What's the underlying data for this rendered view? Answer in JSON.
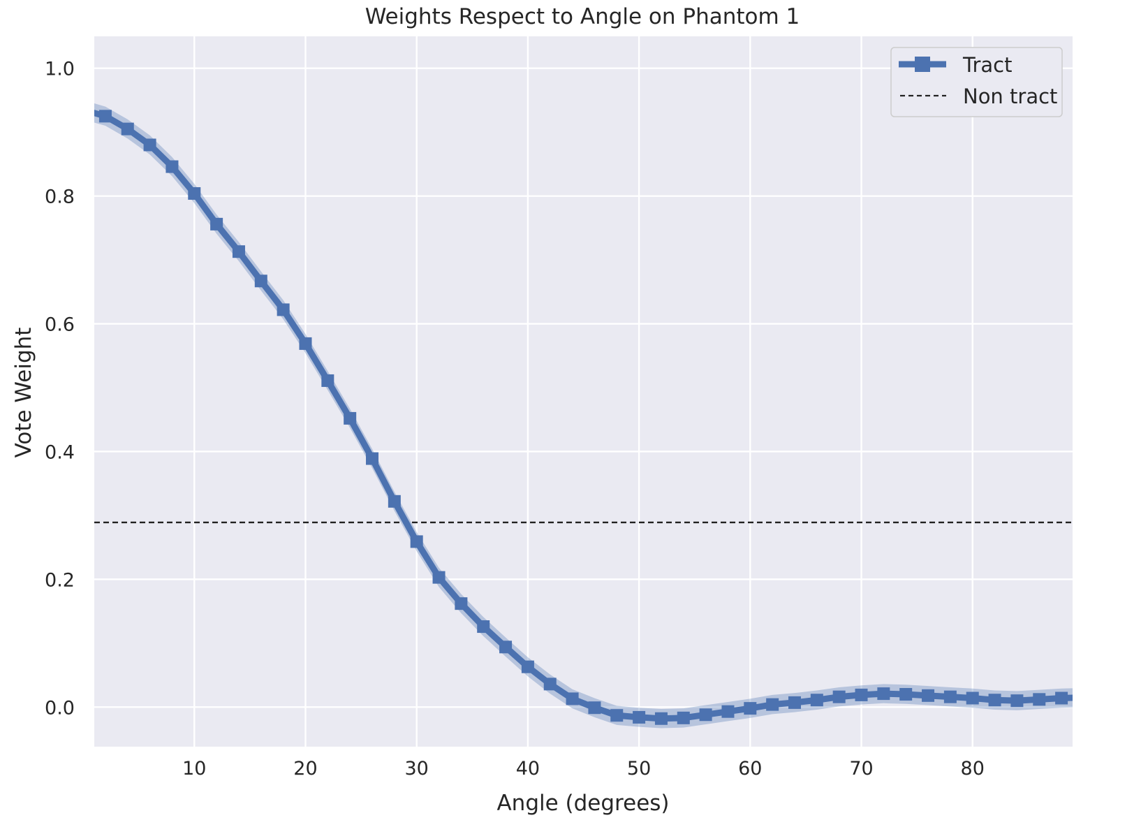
{
  "chart_data": {
    "type": "line",
    "title": "Weights Respect to Angle on Phantom 1",
    "xlabel": "Angle (degrees)",
    "ylabel": "Vote Weight",
    "xlim": [
      1,
      89
    ],
    "ylim": [
      -0.062,
      1.05
    ],
    "xticks": [
      10,
      20,
      30,
      40,
      50,
      60,
      70,
      80
    ],
    "yticks": [
      0.0,
      0.2,
      0.4,
      0.6,
      0.8,
      1.0
    ],
    "xtick_labels": [
      "10",
      "20",
      "30",
      "40",
      "50",
      "60",
      "70",
      "80"
    ],
    "ytick_labels": [
      "0.0",
      "0.2",
      "0.4",
      "0.6",
      "0.8",
      "1.0"
    ],
    "grid": true,
    "legend_position": "top-right",
    "colors": {
      "background": "#eaeaf2",
      "grid": "#ffffff",
      "tract": "#4c72b0",
      "non_tract": "#222222"
    },
    "series": [
      {
        "name": "Tract",
        "style": "solid-square-markers",
        "band": 0.015,
        "x": [
          0,
          2,
          4,
          6,
          8,
          10,
          12,
          14,
          16,
          18,
          20,
          22,
          24,
          26,
          28,
          30,
          32,
          34,
          36,
          38,
          40,
          42,
          44,
          46,
          48,
          50,
          52,
          54,
          56,
          58,
          60,
          62,
          64,
          66,
          68,
          70,
          72,
          74,
          76,
          78,
          80,
          82,
          84,
          86,
          88,
          90
        ],
        "y": [
          0.935,
          0.925,
          0.905,
          0.88,
          0.846,
          0.804,
          0.756,
          0.713,
          0.667,
          0.622,
          0.569,
          0.511,
          0.452,
          0.389,
          0.322,
          0.259,
          0.203,
          0.162,
          0.126,
          0.094,
          0.063,
          0.036,
          0.013,
          -0.001,
          -0.013,
          -0.016,
          -0.018,
          -0.017,
          -0.012,
          -0.007,
          -0.002,
          0.004,
          0.007,
          0.011,
          0.016,
          0.019,
          0.021,
          0.02,
          0.018,
          0.016,
          0.014,
          0.011,
          0.01,
          0.012,
          0.014,
          0.015
        ]
      },
      {
        "name": "Non tract",
        "style": "dashed",
        "y_constant": 0.289
      }
    ]
  }
}
